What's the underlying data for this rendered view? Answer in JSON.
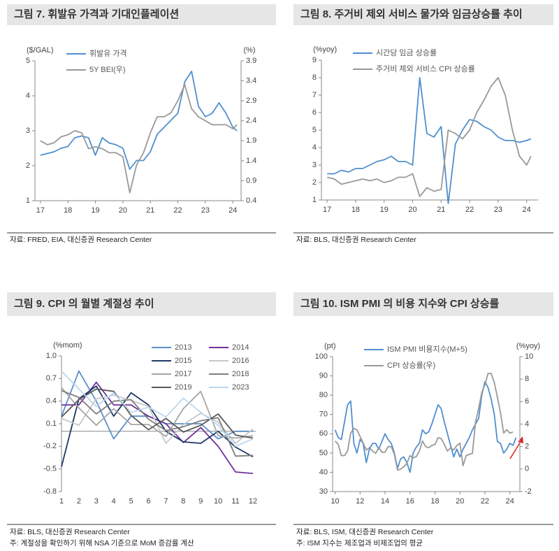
{
  "chart_data": [
    {
      "type": "line",
      "title": "그림 7. 휘발유 가격과 기대인플레이션",
      "source": "자료: FRED, EIA, 대신증권 Research Center",
      "y_unit": "($/GAL)",
      "y2_unit": "(%)",
      "legend": "upper left",
      "x": [
        17,
        17.25,
        17.5,
        17.75,
        18,
        18.25,
        18.5,
        18.75,
        19,
        19.25,
        19.5,
        19.75,
        20,
        20.25,
        20.5,
        20.75,
        21,
        21.25,
        21.5,
        21.75,
        22,
        22.25,
        22.5,
        22.75,
        23,
        23.25,
        23.5,
        23.75,
        24,
        24.15
      ],
      "xlim": [
        16.8,
        24.3
      ],
      "xticks": [
        17,
        18,
        19,
        20,
        21,
        22,
        23,
        24
      ],
      "ylim": [
        1,
        5
      ],
      "yticks": [
        1,
        2,
        3,
        4,
        5
      ],
      "y2lim": [
        0.4,
        3.9
      ],
      "y2ticks": [
        0.4,
        0.9,
        1.4,
        1.9,
        2.4,
        2.9,
        3.4,
        3.9
      ],
      "series": [
        {
          "name": "휘발유 가격",
          "color": "#4f8fcf",
          "values": [
            2.3,
            2.35,
            2.4,
            2.5,
            2.55,
            2.8,
            2.85,
            2.8,
            2.3,
            2.8,
            2.65,
            2.6,
            2.5,
            1.9,
            2.15,
            2.15,
            2.4,
            2.9,
            3.1,
            3.3,
            3.5,
            4.4,
            4.7,
            3.7,
            3.4,
            3.5,
            3.8,
            3.5,
            3.1,
            3.0
          ]
        },
        {
          "name": "5Y BEI(우)",
          "color": "#999999",
          "axis": "y2",
          "values": [
            1.9,
            1.8,
            1.85,
            2.0,
            2.05,
            2.15,
            2.1,
            1.7,
            1.75,
            1.7,
            1.6,
            1.6,
            1.5,
            0.6,
            1.3,
            1.6,
            2.1,
            2.5,
            2.5,
            2.6,
            2.9,
            3.3,
            2.7,
            2.5,
            2.4,
            2.3,
            2.3,
            2.3,
            2.2,
            2.3
          ]
        }
      ]
    },
    {
      "type": "line",
      "title": "그림 8. 주거비 제외 서비스 물가와 임금상승률 추이",
      "source": "자료: BLS, 대신증권 Research Center",
      "y_unit": "(%yoy)",
      "legend": "upper left",
      "x": [
        17,
        17.25,
        17.5,
        17.75,
        18,
        18.25,
        18.5,
        18.75,
        19,
        19.25,
        19.5,
        19.75,
        20,
        20.25,
        20.5,
        20.75,
        21,
        21.25,
        21.5,
        21.75,
        22,
        22.25,
        22.5,
        22.75,
        23,
        23.25,
        23.5,
        23.75,
        24,
        24.15
      ],
      "xlim": [
        16.8,
        24.4
      ],
      "xticks": [
        17,
        18,
        19,
        20,
        21,
        22,
        23,
        24
      ],
      "ylim": [
        1,
        9
      ],
      "yticks": [
        1,
        2,
        3,
        4,
        5,
        6,
        7,
        8,
        9
      ],
      "series": [
        {
          "name": "시간당 임금 상승률",
          "color": "#4f8fcf",
          "values": [
            2.5,
            2.5,
            2.7,
            2.6,
            2.8,
            2.8,
            3.0,
            3.2,
            3.3,
            3.5,
            3.2,
            3.2,
            3.0,
            8.0,
            4.8,
            4.6,
            5.2,
            0.8,
            4.2,
            5.0,
            5.6,
            5.5,
            5.2,
            5.0,
            4.6,
            4.4,
            4.4,
            4.3,
            4.4,
            4.5
          ]
        },
        {
          "name": "주거비 제외 서비스 CPI 상승률",
          "color": "#999999",
          "values": [
            2.3,
            2.2,
            1.9,
            2.0,
            2.1,
            2.2,
            2.1,
            2.2,
            2.0,
            2.1,
            2.3,
            2.3,
            2.5,
            1.2,
            1.7,
            1.5,
            1.6,
            5.0,
            4.8,
            4.5,
            5.0,
            6.0,
            6.7,
            7.5,
            8.0,
            7.0,
            5.0,
            3.5,
            3.0,
            3.5
          ]
        }
      ]
    },
    {
      "type": "line",
      "title": "그림 9. CPI 의 월별 계절성 추이",
      "source": "자료: BLS, 대신증권 Research Center",
      "note": "주: 계절성을 확인하기 위해 NSA 기준으로 MoM 증감률 계산",
      "y_unit": "(%mom)",
      "legend": "upper right",
      "categories": [
        "1",
        "2",
        "3",
        "4",
        "5",
        "6",
        "7",
        "8",
        "9",
        "10",
        "11",
        "12"
      ],
      "ylim": [
        -0.8,
        1.0
      ],
      "yticks": [
        -0.8,
        -0.5,
        -0.2,
        0.1,
        0.4,
        0.7,
        {
          "value": 1.0,
          "label": "1.0"
        }
      ],
      "series": [
        {
          "name": "2013",
          "color": "#5b8fc9",
          "values": [
            0.2,
            0.8,
            0.4,
            -0.1,
            0.2,
            0.2,
            0.1,
            0.1,
            0.1,
            -0.1,
            0.0,
            0.0
          ]
        },
        {
          "name": "2014",
          "color": "#7030a0",
          "values": [
            0.35,
            0.35,
            0.65,
            0.35,
            0.35,
            0.2,
            0.1,
            -0.15,
            0.05,
            -0.2,
            -0.54,
            -0.56
          ]
        },
        {
          "name": "2015",
          "color": "#1f3864",
          "values": [
            -0.47,
            0.43,
            0.6,
            0.2,
            0.51,
            0.35,
            0.0,
            -0.14,
            -0.16,
            0.0,
            -0.21,
            -0.34
          ]
        },
        {
          "name": "2016",
          "color": "#c8c8c8",
          "values": [
            0.17,
            0.08,
            0.43,
            0.48,
            0.41,
            0.33,
            -0.16,
            0.09,
            0.24,
            0.12,
            -0.16,
            0.03
          ]
        },
        {
          "name": "2017",
          "color": "#a6a6a6",
          "values": [
            0.58,
            0.31,
            0.08,
            0.3,
            0.09,
            0.09,
            -0.07,
            0.3,
            0.53,
            -0.06,
            -0.09,
            -0.06
          ]
        },
        {
          "name": "2018",
          "color": "#7f7f7f",
          "values": [
            0.54,
            0.45,
            0.23,
            0.4,
            0.42,
            0.16,
            0.01,
            0.06,
            0.14,
            0.18,
            -0.33,
            -0.32
          ]
        },
        {
          "name": "2019",
          "color": "#595959",
          "values": [
            0.19,
            0.42,
            0.56,
            0.53,
            0.21,
            0.02,
            0.17,
            -0.01,
            0.08,
            0.23,
            -0.05,
            -0.09
          ]
        },
        {
          "name": "2023",
          "color": "#bdd7ee",
          "values": [
            0.8,
            0.56,
            0.33,
            0.51,
            0.25,
            0.32,
            0.19,
            0.44,
            0.25,
            0.08,
            -0.2,
            -0.1
          ]
        }
      ]
    },
    {
      "type": "line",
      "title": "그림 10. ISM PMI 의 비용 지수와 CPI 상승률",
      "source": "자료: BLS, ISM, 대신증권 Research Center",
      "note": "주: ISM 지수는 제조업과 비제조업의 평균",
      "y_unit": "(pt)",
      "y2_unit": "(%yoy)",
      "legend": "upper left",
      "x": [
        10,
        10.25,
        10.5,
        10.75,
        11,
        11.25,
        11.5,
        11.75,
        12,
        12.25,
        12.5,
        12.75,
        13,
        13.25,
        13.5,
        13.75,
        14,
        14.25,
        14.5,
        14.75,
        15,
        15.25,
        15.5,
        15.75,
        16,
        16.25,
        16.5,
        16.75,
        17,
        17.25,
        17.5,
        17.75,
        18,
        18.25,
        18.5,
        18.75,
        19,
        19.25,
        19.5,
        19.75,
        20,
        20.25,
        20.5,
        20.75,
        21,
        21.25,
        21.5,
        21.75,
        22,
        22.25,
        22.5,
        22.75,
        23,
        23.25,
        23.5,
        23.75,
        24,
        24.25,
        24.5
      ],
      "xlim": [
        9.8,
        24.8
      ],
      "xticks": [
        10,
        12,
        14,
        16,
        18,
        20,
        22,
        24
      ],
      "ylim": [
        30,
        100
      ],
      "yticks": [
        30,
        40,
        50,
        60,
        70,
        80,
        90,
        100
      ],
      "y2lim": [
        -2,
        10
      ],
      "y2ticks": [
        -2,
        0,
        2,
        4,
        6,
        8,
        10
      ],
      "series": [
        {
          "name": "ISM PMI 비용지수(M+5)",
          "color": "#4f8fcf",
          "values": [
            62,
            58,
            57,
            66,
            75,
            77,
            55,
            50,
            57,
            55,
            45,
            52,
            55,
            55,
            52,
            56,
            60,
            57,
            55,
            50,
            42,
            47,
            48,
            45,
            40,
            50,
            53,
            55,
            62,
            60,
            61,
            65,
            70,
            75,
            73,
            66,
            60,
            54,
            48,
            52,
            48,
            52,
            55,
            58,
            62,
            65,
            68,
            80,
            87,
            84,
            78,
            70,
            56,
            55,
            50,
            52,
            55,
            54,
            58
          ]
        },
        {
          "name": "CPI 상승률(우)",
          "color": "#999999",
          "axis": "y2",
          "values": [
            2.5,
            2.2,
            1.2,
            1.2,
            1.6,
            3.2,
            3.6,
            3.5,
            2.9,
            2.3,
            1.7,
            1.9,
            1.6,
            1.4,
            1.9,
            1.5,
            1.5,
            2.0,
            2.0,
            1.3,
            -0.1,
            0.0,
            0.2,
            0.5,
            1.2,
            1.0,
            1.1,
            1.6,
            2.5,
            2.0,
            1.9,
            2.1,
            2.2,
            2.8,
            2.7,
            2.2,
            1.6,
            1.9,
            1.7,
            2.1,
            2.3,
            0.3,
            1.2,
            1.3,
            1.4,
            4.2,
            5.4,
            6.8,
            7.5,
            8.5,
            8.5,
            7.7,
            6.4,
            5.0,
            3.2,
            3.5,
            3.2,
            3.3,
            null
          ]
        }
      ]
    }
  ]
}
